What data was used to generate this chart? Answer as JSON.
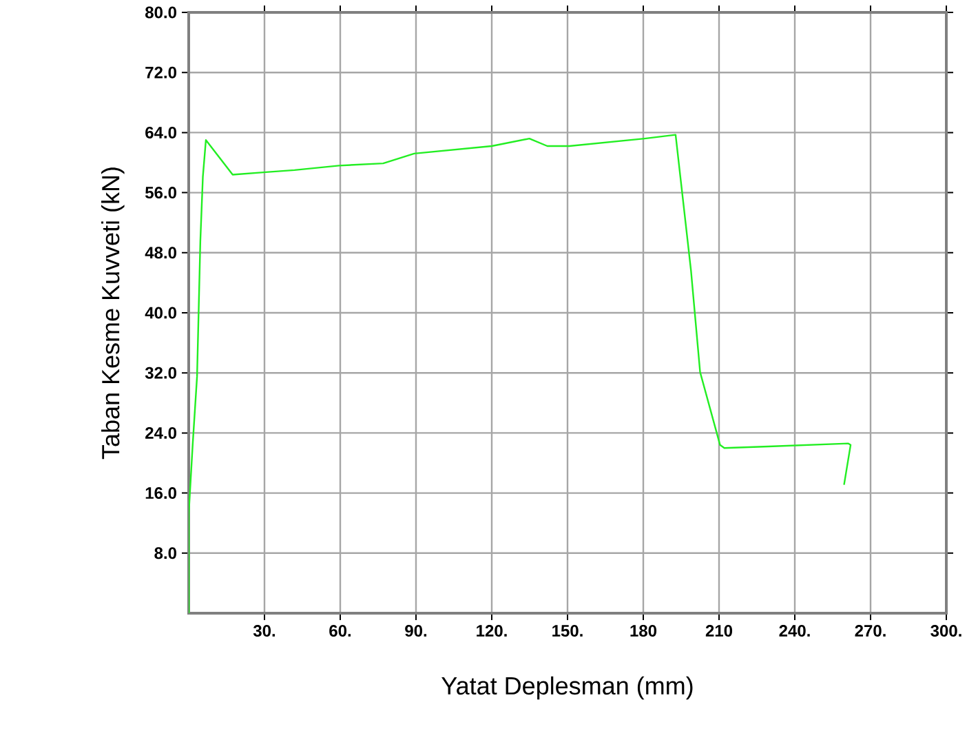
{
  "chart_data": {
    "type": "line",
    "xlabel": "Yatat Deplesman (mm)",
    "ylabel": "Taban Kesme Kuvveti (kN)",
    "series": [
      {
        "color": "#22ee22",
        "x": [
          0,
          0,
          1.6,
          3.3,
          3.9,
          4.6,
          5.6,
          6.8,
          17.4,
          29.6,
          41.9,
          59.5,
          77,
          89.3,
          120,
          134.9,
          142,
          150.7,
          180.5,
          192.8,
          198.9,
          202.5,
          210.4,
          212.1,
          229.6,
          261.2,
          262.1,
          259.5
        ],
        "values": [
          0,
          13.2,
          22.6,
          31.5,
          39.8,
          49.5,
          58.1,
          63.0,
          58.4,
          58.7,
          59.0,
          59.6,
          59.9,
          61.2,
          62.2,
          63.2,
          62.2,
          62.2,
          63.2,
          63.7,
          45.6,
          32.1,
          22.4,
          22.0,
          22.2,
          22.6,
          22.4,
          17.1
        ]
      }
    ],
    "xlim": [
      0,
      300
    ],
    "ylim": [
      0,
      80
    ],
    "xticks": [
      {
        "value": 30,
        "label": "30."
      },
      {
        "value": 60,
        "label": "60."
      },
      {
        "value": 90,
        "label": "90."
      },
      {
        "value": 120,
        "label": "120."
      },
      {
        "value": 150,
        "label": "150."
      },
      {
        "value": 180,
        "label": "180"
      },
      {
        "value": 210,
        "label": "210"
      },
      {
        "value": 240,
        "label": "240."
      },
      {
        "value": 270,
        "label": "270."
      },
      {
        "value": 300,
        "label": "300."
      }
    ],
    "yticks": [
      {
        "value": 8,
        "label": "8.0"
      },
      {
        "value": 16,
        "label": "16.0"
      },
      {
        "value": 24,
        "label": "24.0"
      },
      {
        "value": 32,
        "label": "32.0"
      },
      {
        "value": 40,
        "label": "40.0"
      },
      {
        "value": 48,
        "label": "48.0"
      },
      {
        "value": 56,
        "label": "56.0"
      },
      {
        "value": 64,
        "label": "64.0"
      },
      {
        "value": 72,
        "label": "72.0"
      },
      {
        "value": 80,
        "label": "80.0"
      }
    ],
    "grid": true,
    "marker": "none",
    "line_style": "solid"
  }
}
